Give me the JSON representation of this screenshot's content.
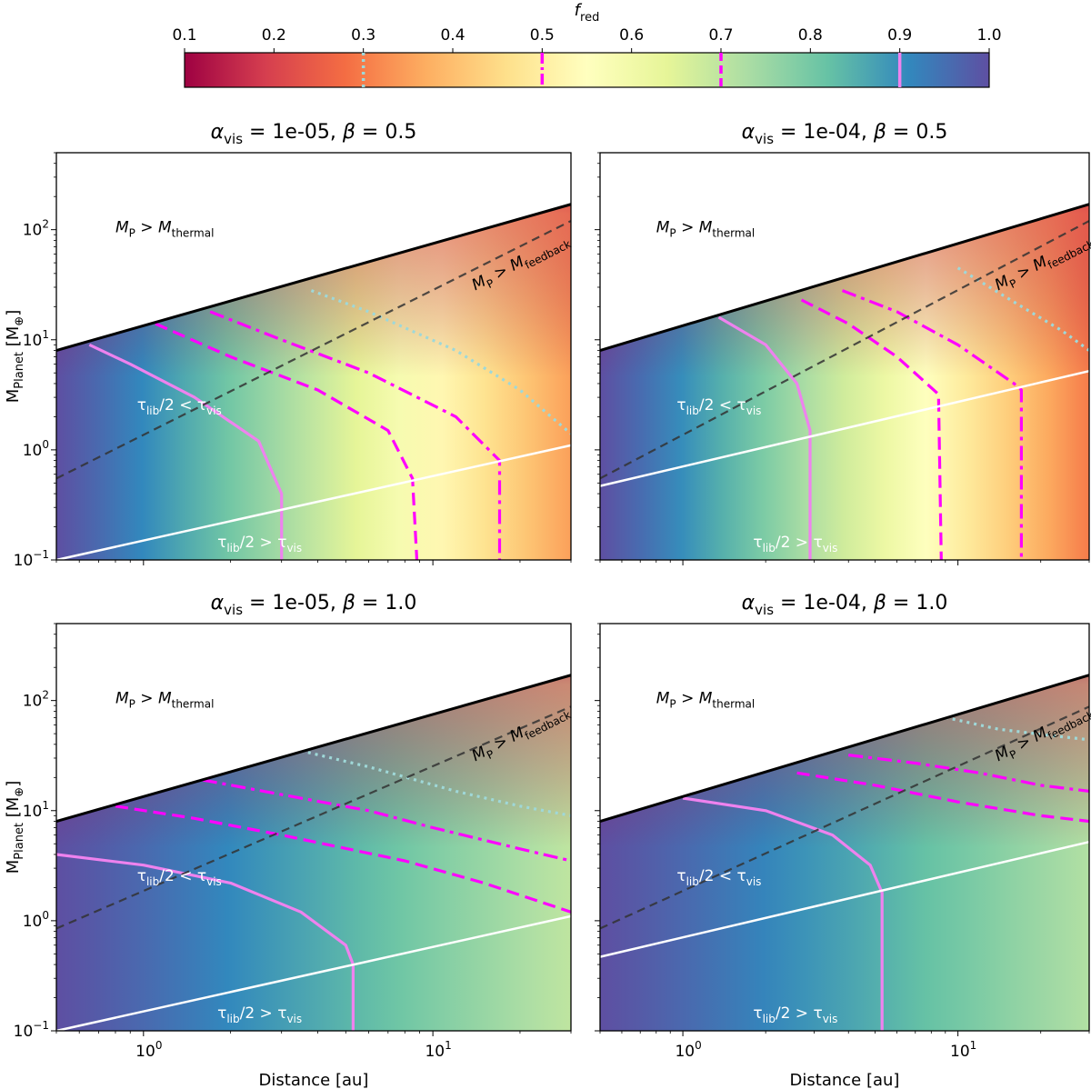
{
  "chart_data": {
    "type": "heatmap",
    "colorbar": {
      "label": "f_red",
      "label_main": "f",
      "label_sub": "red",
      "range": [
        0.1,
        1.0
      ],
      "ticks": [
        "0.1",
        "0.2",
        "0.3",
        "0.4",
        "0.5",
        "0.6",
        "0.7",
        "0.8",
        "0.9",
        "1.0"
      ],
      "colormap": "Spectral",
      "contour_markers": [
        {
          "value": 0.3,
          "style": "dotted",
          "color": "#9fd8d8"
        },
        {
          "value": 0.5,
          "style": "dashdot",
          "color": "#ff00ff"
        },
        {
          "value": 0.7,
          "style": "dashed",
          "color": "#ff00ff"
        },
        {
          "value": 0.9,
          "style": "solid",
          "color": "#ee82ee"
        }
      ]
    },
    "x_axis": {
      "label": "Distance [au]",
      "scale": "log",
      "xlim": [
        0.5,
        30
      ],
      "tick_labels": [
        "10^0",
        "10^1"
      ]
    },
    "y_axis": {
      "label": "M_Planet [M_⊕]",
      "label_main": "M",
      "label_sub": "Planet",
      "label_unit": " [M",
      "label_unit_sub": "⊕",
      "label_end": "]",
      "scale": "log",
      "ylim": [
        0.1,
        500
      ],
      "tick_labels": [
        "10^-1",
        "10^0",
        "10^1",
        "10^2"
      ]
    },
    "panels": [
      {
        "id": "tl",
        "title": {
          "alpha": "α",
          "alpha_sub": "vis",
          "text": " = 1e-05, ",
          "beta": "β",
          "beta_text": " = 0.5"
        },
        "thermal_line": {
          "x": [
            0.5,
            30
          ],
          "y": [
            8,
            170
          ]
        },
        "feedback_line": {
          "x": [
            0.5,
            30
          ],
          "y": [
            0.55,
            120
          ]
        },
        "tau_line": {
          "x": [
            0.5,
            30
          ],
          "y": [
            0.1,
            1.1
          ]
        },
        "fred_inner": 1.0,
        "fred_outer_low": 0.35,
        "contours": [
          {
            "level": 0.9,
            "style": "solid",
            "points": [
              [
                0.65,
                9
              ],
              [
                0.9,
                6
              ],
              [
                1.5,
                3
              ],
              [
                2.5,
                1.2
              ],
              [
                3.0,
                0.4
              ],
              [
                3.0,
                0.1
              ]
            ]
          },
          {
            "level": 0.7,
            "style": "dashed",
            "points": [
              [
                1.1,
                14
              ],
              [
                2,
                7
              ],
              [
                4,
                3.5
              ],
              [
                7,
                1.5
              ],
              [
                8.5,
                0.55
              ],
              [
                8.8,
                0.1
              ]
            ]
          },
          {
            "level": 0.5,
            "style": "dashdot",
            "points": [
              [
                1.7,
                18
              ],
              [
                3,
                10
              ],
              [
                6,
                5
              ],
              [
                12,
                2
              ],
              [
                17,
                0.8
              ],
              [
                17,
                0.1
              ]
            ]
          },
          {
            "level": 0.3,
            "style": "dotted",
            "points": [
              [
                3.8,
                28
              ],
              [
                6,
                18
              ],
              [
                12,
                8
              ],
              [
                20,
                3.5
              ],
              [
                30,
                1.4
              ]
            ]
          }
        ],
        "annotations": [
          {
            "kind": "thermal",
            "text_main": "M",
            "text_sub": "P",
            "text_mid": " > M",
            "text_sub2": "thermal",
            "x": 0.8,
            "y": 95,
            "color": "#000000"
          },
          {
            "kind": "feedback",
            "text_main": "M",
            "text_sub": "P",
            "text_mid": " > M",
            "text_sub2": "feedback",
            "x": 14,
            "y": 28,
            "color": "#000000",
            "rotate": -27
          },
          {
            "kind": "tau_lt",
            "text_main": "τ",
            "text_sub": "lib",
            "text_mid": "/2 < τ",
            "text_sub2": "vis",
            "x": 0.95,
            "y": 2.3,
            "color": "#ffffff"
          },
          {
            "kind": "tau_gt",
            "text_main": "τ",
            "text_sub": "lib",
            "text_mid": "/2 > τ",
            "text_sub2": "vis",
            "x": 1.8,
            "y": 0.13,
            "color": "#ffffff"
          }
        ]
      },
      {
        "id": "tr",
        "title": {
          "alpha": "α",
          "alpha_sub": "vis",
          "text": " = 1e-04, ",
          "beta": "β",
          "beta_text": " = 0.5"
        },
        "thermal_line": {
          "x": [
            0.5,
            30
          ],
          "y": [
            8,
            170
          ]
        },
        "feedback_line": {
          "x": [
            0.5,
            30
          ],
          "y": [
            0.55,
            120
          ]
        },
        "tau_line": {
          "x": [
            0.5,
            30
          ],
          "y": [
            0.47,
            5.2
          ]
        },
        "fred_inner": 1.0,
        "fred_outer_low": 0.3,
        "contours": [
          {
            "level": 0.9,
            "style": "solid",
            "points": [
              [
                1.35,
                16
              ],
              [
                2,
                9
              ],
              [
                2.6,
                4
              ],
              [
                2.9,
                1.5
              ],
              [
                2.9,
                0.1
              ]
            ]
          },
          {
            "level": 0.7,
            "style": "dashed",
            "points": [
              [
                2.7,
                23
              ],
              [
                4,
                14
              ],
              [
                6,
                7
              ],
              [
                8.5,
                3.2
              ],
              [
                8.7,
                0.1
              ]
            ]
          },
          {
            "level": 0.5,
            "style": "dashdot",
            "points": [
              [
                3.8,
                28
              ],
              [
                6,
                18
              ],
              [
                10,
                9
              ],
              [
                16,
                4
              ],
              [
                17,
                3.5
              ],
              [
                17,
                0.1
              ]
            ]
          },
          {
            "level": 0.3,
            "style": "dotted",
            "points": [
              [
                10,
                45
              ],
              [
                16,
                22
              ],
              [
                24,
                12
              ],
              [
                30,
                8
              ]
            ]
          }
        ],
        "annotations": [
          {
            "kind": "thermal",
            "text_main": "M",
            "text_sub": "P",
            "text_mid": " > M",
            "text_sub2": "thermal",
            "x": 0.8,
            "y": 95,
            "color": "#000000"
          },
          {
            "kind": "feedback",
            "text_main": "M",
            "text_sub": "P",
            "text_mid": " > M",
            "text_sub2": "feedback",
            "x": 14,
            "y": 28,
            "color": "#000000",
            "rotate": -27
          },
          {
            "kind": "tau_lt",
            "text_main": "τ",
            "text_sub": "lib",
            "text_mid": "/2 < τ",
            "text_sub2": "vis",
            "x": 0.95,
            "y": 2.3,
            "color": "#ffffff"
          },
          {
            "kind": "tau_gt",
            "text_main": "τ",
            "text_sub": "lib",
            "text_mid": "/2 > τ",
            "text_sub2": "vis",
            "x": 1.8,
            "y": 0.13,
            "color": "#ffffff"
          }
        ]
      },
      {
        "id": "bl",
        "title": {
          "alpha": "α",
          "alpha_sub": "vis",
          "text": " = 1e-05, ",
          "beta": "β",
          "beta_text": " = 1.0"
        },
        "thermal_line": {
          "x": [
            0.5,
            30
          ],
          "y": [
            8,
            170
          ]
        },
        "feedback_line": {
          "x": [
            0.5,
            30
          ],
          "y": [
            0.85,
            88
          ]
        },
        "tau_line": {
          "x": [
            0.5,
            30
          ],
          "y": [
            0.1,
            1.1
          ]
        },
        "fred_inner": 1.0,
        "fred_outer_low": 0.7,
        "contours": [
          {
            "level": 0.9,
            "style": "solid",
            "points": [
              [
                0.5,
                4
              ],
              [
                1,
                3.2
              ],
              [
                2,
                2.2
              ],
              [
                3.5,
                1.2
              ],
              [
                5,
                0.6
              ],
              [
                5.3,
                0.4
              ],
              [
                5.3,
                0.1
              ]
            ]
          },
          {
            "level": 0.7,
            "style": "dashed",
            "points": [
              [
                0.8,
                11
              ],
              [
                1.5,
                8.5
              ],
              [
                3,
                6
              ],
              [
                8,
                3.5
              ],
              [
                15,
                2.2
              ],
              [
                30,
                1.2
              ]
            ]
          },
          {
            "level": 0.5,
            "style": "dashdot",
            "points": [
              [
                1.6,
                19
              ],
              [
                3,
                14
              ],
              [
                6,
                10
              ],
              [
                10,
                7
              ],
              [
                20,
                4.5
              ],
              [
                30,
                3.5
              ]
            ]
          },
          {
            "level": 0.3,
            "style": "dotted",
            "points": [
              [
                3.5,
                35
              ],
              [
                6,
                25
              ],
              [
                12,
                15
              ],
              [
                20,
                11
              ],
              [
                30,
                9
              ]
            ]
          }
        ],
        "annotations": [
          {
            "kind": "thermal",
            "text_main": "M",
            "text_sub": "P",
            "text_mid": " > M",
            "text_sub2": "thermal",
            "x": 0.8,
            "y": 95,
            "color": "#000000"
          },
          {
            "kind": "feedback",
            "text_main": "M",
            "text_sub": "P",
            "text_mid": " > M",
            "text_sub2": "feedback",
            "x": 14,
            "y": 28,
            "color": "#000000",
            "rotate": -27
          },
          {
            "kind": "tau_lt",
            "text_main": "τ",
            "text_sub": "lib",
            "text_mid": "/2 < τ",
            "text_sub2": "vis",
            "x": 0.95,
            "y": 2.3,
            "color": "#ffffff"
          },
          {
            "kind": "tau_gt",
            "text_main": "τ",
            "text_sub": "lib",
            "text_mid": "/2 > τ",
            "text_sub2": "vis",
            "x": 1.8,
            "y": 0.13,
            "color": "#ffffff"
          }
        ]
      },
      {
        "id": "br",
        "title": {
          "alpha": "α",
          "alpha_sub": "vis",
          "text": " = 1e-04, ",
          "beta": "β",
          "beta_text": " = 1.0"
        },
        "thermal_line": {
          "x": [
            0.5,
            30
          ],
          "y": [
            8,
            170
          ]
        },
        "feedback_line": {
          "x": [
            0.5,
            30
          ],
          "y": [
            0.85,
            88
          ]
        },
        "tau_line": {
          "x": [
            0.5,
            30
          ],
          "y": [
            0.47,
            5.2
          ]
        },
        "fred_inner": 1.0,
        "fred_outer_low": 0.72,
        "contours": [
          {
            "level": 0.9,
            "style": "solid",
            "points": [
              [
                1.0,
                13
              ],
              [
                2,
                10
              ],
              [
                3.5,
                6
              ],
              [
                4.8,
                3.2
              ],
              [
                5.3,
                1.8
              ],
              [
                5.3,
                0.1
              ]
            ]
          },
          {
            "level": 0.7,
            "style": "dashed",
            "points": [
              [
                2.6,
                22
              ],
              [
                5,
                17
              ],
              [
                10,
                12
              ],
              [
                20,
                9
              ],
              [
                30,
                8
              ]
            ]
          },
          {
            "level": 0.5,
            "style": "dashdot",
            "points": [
              [
                4,
                32
              ],
              [
                7,
                27
              ],
              [
                12,
                22
              ],
              [
                20,
                17
              ],
              [
                30,
                15
              ]
            ]
          },
          {
            "level": 0.3,
            "style": "dotted",
            "points": [
              [
                8,
                75
              ],
              [
                14,
                55
              ],
              [
                22,
                48
              ],
              [
                30,
                44
              ]
            ]
          }
        ],
        "annotations": [
          {
            "kind": "thermal",
            "text_main": "M",
            "text_sub": "P",
            "text_mid": " > M",
            "text_sub2": "thermal",
            "x": 0.8,
            "y": 95,
            "color": "#000000"
          },
          {
            "kind": "feedback",
            "text_main": "M",
            "text_sub": "P",
            "text_mid": " > M",
            "text_sub2": "feedback",
            "x": 14,
            "y": 28,
            "color": "#000000",
            "rotate": -27
          },
          {
            "kind": "tau_lt",
            "text_main": "τ",
            "text_sub": "lib",
            "text_mid": "/2 < τ",
            "text_sub2": "vis",
            "x": 0.95,
            "y": 2.3,
            "color": "#ffffff"
          },
          {
            "kind": "tau_gt",
            "text_main": "τ",
            "text_sub": "lib",
            "text_mid": "/2 > τ",
            "text_sub2": "vis",
            "x": 1.8,
            "y": 0.13,
            "color": "#ffffff"
          }
        ]
      }
    ]
  }
}
